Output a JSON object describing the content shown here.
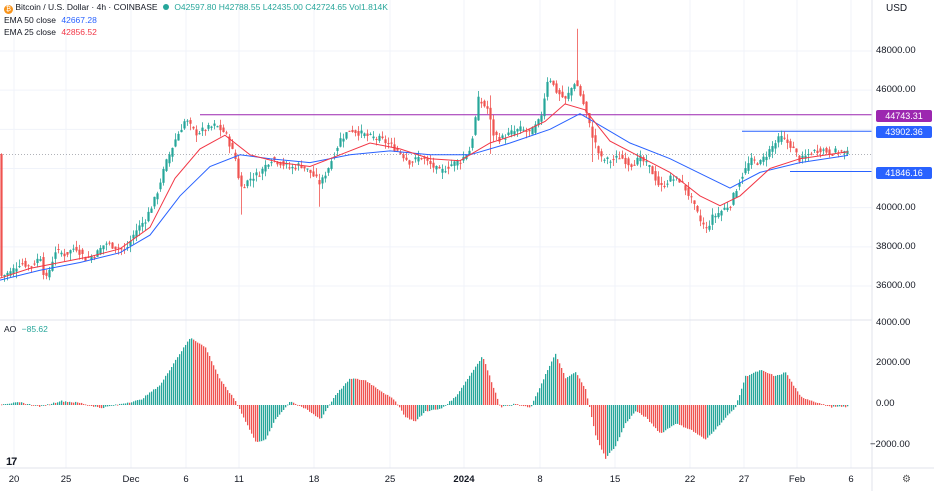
{
  "header": {
    "title": "Bitcoin / U.S. Dollar · 4h · COINBASE",
    "ohlc": "O42597.80 H42788.55 L42435.00 C42724.65 Vol1.814K",
    "ema50_label": "EMA 50 close",
    "ema50_value": "42667.28",
    "ema25_label": "EMA 25 close",
    "ema25_value": "42856.52",
    "ao_label": "AO",
    "ao_value": "−85.62"
  },
  "currency": "USD",
  "colors": {
    "up": "#26a69a",
    "down": "#ef5350",
    "ema50": "#2962ff",
    "ema25": "#f23645",
    "resistance": "#9c27b0",
    "support": "#2962ff"
  },
  "levels": {
    "resistance": "44743.31",
    "upper": "43902.36",
    "support": "41846.16"
  },
  "chart_data": [
    {
      "type": "candlestick",
      "title": "Bitcoin / U.S. Dollar · 4h · COINBASE",
      "ylim": [
        35000,
        49500
      ],
      "y_ticks": [
        "48000.00",
        "46000.00",
        "44000.00",
        "42000.00",
        "40000.00",
        "38000.00",
        "36000.00"
      ],
      "x_ticks": [
        "20",
        "25",
        "Dec",
        "6",
        "11",
        "18",
        "25",
        "2024",
        "8",
        "15",
        "22",
        "27",
        "Feb",
        "6"
      ],
      "price_points": [
        [
          0,
          36500
        ],
        [
          10,
          36700
        ],
        [
          20,
          37200
        ],
        [
          30,
          37000
        ],
        [
          40,
          37500
        ],
        [
          45,
          36200
        ],
        [
          55,
          37800
        ],
        [
          65,
          37600
        ],
        [
          75,
          38000
        ],
        [
          85,
          37400
        ],
        [
          95,
          37600
        ],
        [
          105,
          38200
        ],
        [
          115,
          38000
        ],
        [
          125,
          37800
        ],
        [
          135,
          38800
        ],
        [
          145,
          39400
        ],
        [
          155,
          40500
        ],
        [
          165,
          42200
        ],
        [
          175,
          43500
        ],
        [
          185,
          44500
        ],
        [
          195,
          43800
        ],
        [
          205,
          44000
        ],
        [
          215,
          44200
        ],
        [
          225,
          43800
        ],
        [
          235,
          42500
        ],
        [
          240,
          41000
        ],
        [
          250,
          41500
        ],
        [
          260,
          41800
        ],
        [
          270,
          42500
        ],
        [
          280,
          42300
        ],
        [
          290,
          42000
        ],
        [
          300,
          42200
        ],
        [
          310,
          41800
        ],
        [
          320,
          41200
        ],
        [
          330,
          42300
        ],
        [
          340,
          43500
        ],
        [
          350,
          44000
        ],
        [
          360,
          43800
        ],
        [
          370,
          43600
        ],
        [
          380,
          43500
        ],
        [
          390,
          43200
        ],
        [
          400,
          42800
        ],
        [
          410,
          42300
        ],
        [
          420,
          42600
        ],
        [
          430,
          42200
        ],
        [
          440,
          41800
        ],
        [
          450,
          42200
        ],
        [
          460,
          42400
        ],
        [
          470,
          43000
        ],
        [
          478,
          45500
        ],
        [
          488,
          45000
        ],
        [
          492,
          43800
        ],
        [
          500,
          43500
        ],
        [
          510,
          43800
        ],
        [
          520,
          44000
        ],
        [
          530,
          43800
        ],
        [
          540,
          44500
        ],
        [
          548,
          46800
        ],
        [
          555,
          46000
        ],
        [
          565,
          45500
        ],
        [
          575,
          46500
        ],
        [
          585,
          45000
        ],
        [
          590,
          44000
        ],
        [
          600,
          42500
        ],
        [
          610,
          42400
        ],
        [
          620,
          42600
        ],
        [
          630,
          42200
        ],
        [
          640,
          42500
        ],
        [
          650,
          42000
        ],
        [
          660,
          41000
        ],
        [
          670,
          41500
        ],
        [
          680,
          41400
        ],
        [
          690,
          40500
        ],
        [
          700,
          39300
        ],
        [
          706,
          38900
        ],
        [
          712,
          39500
        ],
        [
          720,
          39800
        ],
        [
          730,
          40200
        ],
        [
          740,
          41500
        ],
        [
          750,
          42400
        ],
        [
          760,
          42300
        ],
        [
          770,
          43000
        ],
        [
          780,
          43600
        ],
        [
          790,
          43200
        ],
        [
          800,
          42400
        ],
        [
          810,
          42800
        ],
        [
          820,
          43000
        ],
        [
          830,
          42800
        ],
        [
          840,
          42900
        ],
        [
          848,
          42720
        ]
      ],
      "ema25_points": [
        [
          0,
          36400
        ],
        [
          30,
          36900
        ],
        [
          60,
          37200
        ],
        [
          90,
          37500
        ],
        [
          120,
          37900
        ],
        [
          150,
          39000
        ],
        [
          175,
          41500
        ],
        [
          200,
          43000
        ],
        [
          225,
          43700
        ],
        [
          250,
          42700
        ],
        [
          280,
          42300
        ],
        [
          310,
          42100
        ],
        [
          340,
          42700
        ],
        [
          370,
          43300
        ],
        [
          400,
          43000
        ],
        [
          430,
          42500
        ],
        [
          460,
          42400
        ],
        [
          490,
          43300
        ],
        [
          520,
          43800
        ],
        [
          545,
          44400
        ],
        [
          565,
          45300
        ],
        [
          585,
          45000
        ],
        [
          610,
          43400
        ],
        [
          640,
          42600
        ],
        [
          670,
          41800
        ],
        [
          700,
          40600
        ],
        [
          720,
          40100
        ],
        [
          740,
          40600
        ],
        [
          770,
          42000
        ],
        [
          800,
          42500
        ],
        [
          848,
          42860
        ]
      ],
      "ema50_points": [
        [
          0,
          36300
        ],
        [
          40,
          36800
        ],
        [
          80,
          37200
        ],
        [
          120,
          37700
        ],
        [
          150,
          38600
        ],
        [
          180,
          40600
        ],
        [
          210,
          42100
        ],
        [
          240,
          42700
        ],
        [
          270,
          42500
        ],
        [
          310,
          42300
        ],
        [
          350,
          42700
        ],
        [
          390,
          42900
        ],
        [
          430,
          42700
        ],
        [
          470,
          42700
        ],
        [
          510,
          43300
        ],
        [
          550,
          44000
        ],
        [
          580,
          44800
        ],
        [
          600,
          44200
        ],
        [
          630,
          43300
        ],
        [
          670,
          42500
        ],
        [
          710,
          41500
        ],
        [
          730,
          41000
        ],
        [
          760,
          41800
        ],
        [
          800,
          42300
        ],
        [
          848,
          42670
        ]
      ]
    },
    {
      "type": "bar",
      "title": "AO",
      "ylim": [
        -2700,
        4000
      ],
      "y_ticks": [
        "4000.00",
        "2000.00",
        "0.00",
        "−2000.00"
      ],
      "ao_points": [
        [
          0,
          50
        ],
        [
          20,
          120
        ],
        [
          40,
          -80
        ],
        [
          60,
          200
        ],
        [
          80,
          100
        ],
        [
          100,
          -150
        ],
        [
          120,
          50
        ],
        [
          140,
          250
        ],
        [
          160,
          1000
        ],
        [
          175,
          2200
        ],
        [
          190,
          3300
        ],
        [
          205,
          2800
        ],
        [
          220,
          1200
        ],
        [
          235,
          200
        ],
        [
          245,
          -800
        ],
        [
          255,
          -1800
        ],
        [
          265,
          -1700
        ],
        [
          275,
          -700
        ],
        [
          290,
          200
        ],
        [
          305,
          -200
        ],
        [
          320,
          -700
        ],
        [
          335,
          500
        ],
        [
          350,
          1300
        ],
        [
          365,
          1200
        ],
        [
          380,
          700
        ],
        [
          395,
          200
        ],
        [
          405,
          -600
        ],
        [
          415,
          -800
        ],
        [
          425,
          -300
        ],
        [
          440,
          -200
        ],
        [
          455,
          400
        ],
        [
          470,
          1500
        ],
        [
          482,
          2400
        ],
        [
          492,
          1000
        ],
        [
          500,
          -100
        ],
        [
          515,
          50
        ],
        [
          530,
          -150
        ],
        [
          545,
          1500
        ],
        [
          555,
          2500
        ],
        [
          565,
          1300
        ],
        [
          575,
          1600
        ],
        [
          585,
          800
        ],
        [
          595,
          -1500
        ],
        [
          605,
          -2600
        ],
        [
          615,
          -2000
        ],
        [
          625,
          -900
        ],
        [
          635,
          -300
        ],
        [
          645,
          -600
        ],
        [
          660,
          -1400
        ],
        [
          675,
          -900
        ],
        [
          690,
          -1200
        ],
        [
          705,
          -1700
        ],
        [
          720,
          -900
        ],
        [
          735,
          -100
        ],
        [
          745,
          1400
        ],
        [
          760,
          1700
        ],
        [
          775,
          1400
        ],
        [
          785,
          1600
        ],
        [
          800,
          400
        ],
        [
          815,
          150
        ],
        [
          830,
          -100
        ],
        [
          848,
          -86
        ]
      ]
    }
  ]
}
